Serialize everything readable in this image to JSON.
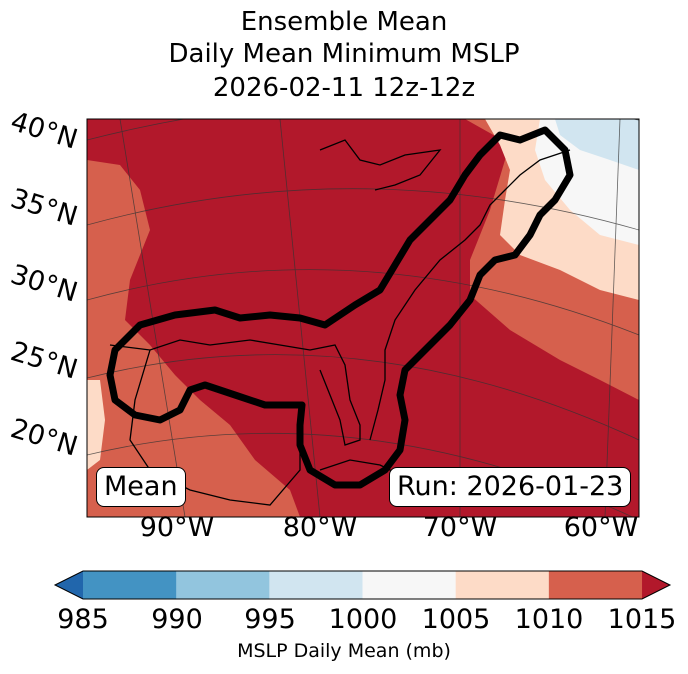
{
  "title": {
    "line1": "Ensemble Mean",
    "line2": "Daily Mean Minimum MSLP",
    "line3": "2026-02-11 12z-12z"
  },
  "map": {
    "latitude_labels": [
      "40°N",
      "35°N",
      "30°N",
      "25°N",
      "20°N"
    ],
    "longitude_labels": [
      "90°W",
      "80°W",
      "70°W",
      "60°W"
    ],
    "left_box": "Mean",
    "right_box": "Run: 2026-01-23"
  },
  "colorbar": {
    "label": "MSLP Daily Mean (mb)",
    "ticks": [
      "985",
      "990",
      "995",
      "1000",
      "1005",
      "1010",
      "1015"
    ],
    "colors": {
      "under": "#2166ac",
      "b985_990": "#4393c3",
      "b990_995": "#92c5de",
      "b995_1000": "#d1e5f0",
      "b1000_1005": "#f7f7f7",
      "b1005_1010": "#fddbc7",
      "b1010_1015": "#d6604d",
      "over": "#b2182b"
    }
  }
}
